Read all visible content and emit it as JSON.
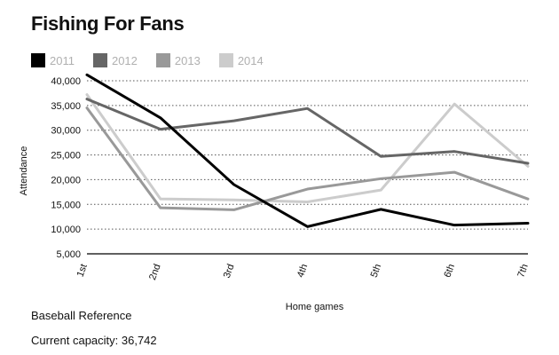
{
  "chart_data": {
    "type": "line",
    "title": "Fishing For Fans",
    "xlabel": "Home games",
    "ylabel": "Attendance",
    "categories": [
      "1st",
      "2nd",
      "3rd",
      "4th",
      "5th",
      "6th",
      "7th"
    ],
    "ylim": [
      5000,
      40000
    ],
    "yticks": [
      5000,
      10000,
      15000,
      20000,
      25000,
      30000,
      35000,
      40000
    ],
    "ytick_labels": [
      "5,000",
      "10,000",
      "15,000",
      "20,000",
      "25,000",
      "30,000",
      "35,000",
      "40,000"
    ],
    "grid": true,
    "legend_position": "top-left",
    "series": [
      {
        "name": "2011",
        "color": "#000000",
        "values": [
          41200,
          32500,
          19000,
          10500,
          14000,
          10800,
          11200
        ]
      },
      {
        "name": "2012",
        "color": "#666666",
        "values": [
          36300,
          30200,
          31900,
          34400,
          24700,
          25700,
          23300
        ]
      },
      {
        "name": "2013",
        "color": "#999999",
        "values": [
          34500,
          14300,
          13900,
          18100,
          20200,
          21500,
          16100
        ]
      },
      {
        "name": "2014",
        "color": "#cccccc",
        "values": [
          37200,
          16100,
          15900,
          15500,
          17900,
          35300,
          22700
        ]
      }
    ]
  },
  "footer": {
    "source": "Baseball Reference",
    "capacity": "Current capacity: 36,742"
  }
}
